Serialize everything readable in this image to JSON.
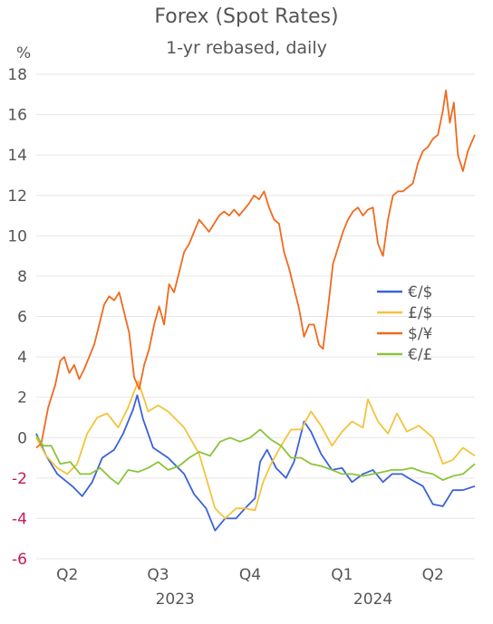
{
  "chart_data": {
    "type": "line",
    "title": "Forex (Spot Rates)",
    "subtitle": "1-yr rebased, daily",
    "ylabel": "%",
    "ylim": [
      -6,
      18
    ],
    "y_ticks": [
      18,
      16,
      14,
      12,
      10,
      8,
      6,
      4,
      2,
      0,
      -2,
      -4,
      -6
    ],
    "x_range": [
      "2023-03-15",
      "2024-05-27"
    ],
    "x_quarter_ticks": [
      {
        "label": "Q2",
        "date": "2023-04-15"
      },
      {
        "label": "Q3",
        "date": "2023-07-15"
      },
      {
        "label": "Q4",
        "date": "2023-10-15"
      },
      {
        "label": "Q1",
        "date": "2024-01-15"
      },
      {
        "label": "Q2",
        "date": "2024-04-15"
      }
    ],
    "x_year_labels": [
      {
        "label": "2023",
        "date": "2023-08-01"
      },
      {
        "label": "2024",
        "date": "2024-02-15"
      }
    ],
    "grid": "horizontal",
    "legend_position": "right",
    "colors": {
      "eur_usd": "#3a62d9",
      "gbp_usd": "#f2c43c",
      "usd_jpy": "#f06a1e",
      "eur_gbp": "#8cc43a",
      "axis_text": "#555555",
      "negative_tick": "#c2185b"
    },
    "series": [
      {
        "name": "€/$",
        "color": "#3a62d9",
        "points": [
          [
            "2023-03-15",
            0.2
          ],
          [
            "2023-03-25",
            -0.9
          ],
          [
            "2023-04-05",
            -1.8
          ],
          [
            "2023-04-20",
            -2.4
          ],
          [
            "2023-04-30",
            -2.9
          ],
          [
            "2023-05-10",
            -2.2
          ],
          [
            "2023-05-20",
            -1.0
          ],
          [
            "2023-06-01",
            -0.6
          ],
          [
            "2023-06-10",
            0.2
          ],
          [
            "2023-06-20",
            1.4
          ],
          [
            "2023-06-24",
            2.1
          ],
          [
            "2023-06-30",
            0.9
          ],
          [
            "2023-07-10",
            -0.5
          ],
          [
            "2023-07-25",
            -1.0
          ],
          [
            "2023-08-10",
            -1.8
          ],
          [
            "2023-08-20",
            -2.8
          ],
          [
            "2023-09-01",
            -3.5
          ],
          [
            "2023-09-10",
            -4.6
          ],
          [
            "2023-09-20",
            -4.0
          ],
          [
            "2023-10-01",
            -4.0
          ],
          [
            "2023-10-10",
            -3.5
          ],
          [
            "2023-10-20",
            -3.0
          ],
          [
            "2023-10-25",
            -1.2
          ],
          [
            "2023-11-01",
            -0.6
          ],
          [
            "2023-11-10",
            -1.5
          ],
          [
            "2023-11-20",
            -2.0
          ],
          [
            "2023-11-28",
            -1.2
          ],
          [
            "2023-12-05",
            0.2
          ],
          [
            "2023-12-08",
            0.8
          ],
          [
            "2023-12-15",
            0.3
          ],
          [
            "2023-12-25",
            -0.8
          ],
          [
            "2024-01-05",
            -1.6
          ],
          [
            "2024-01-15",
            -1.5
          ],
          [
            "2024-01-25",
            -2.2
          ],
          [
            "2024-02-05",
            -1.8
          ],
          [
            "2024-02-15",
            -1.6
          ],
          [
            "2024-02-25",
            -2.2
          ],
          [
            "2024-03-05",
            -1.8
          ],
          [
            "2024-03-15",
            -1.8
          ],
          [
            "2024-03-25",
            -2.1
          ],
          [
            "2024-04-05",
            -2.4
          ],
          [
            "2024-04-15",
            -3.3
          ],
          [
            "2024-04-25",
            -3.4
          ],
          [
            "2024-05-05",
            -2.6
          ],
          [
            "2024-05-15",
            -2.6
          ],
          [
            "2024-05-27",
            -2.4
          ]
        ]
      },
      {
        "name": "£/$",
        "color": "#f2c43c",
        "points": [
          [
            "2023-03-15",
            0.0
          ],
          [
            "2023-03-25",
            -0.9
          ],
          [
            "2023-04-05",
            -1.5
          ],
          [
            "2023-04-15",
            -1.8
          ],
          [
            "2023-04-25",
            -1.3
          ],
          [
            "2023-05-05",
            0.2
          ],
          [
            "2023-05-15",
            1.0
          ],
          [
            "2023-05-25",
            1.2
          ],
          [
            "2023-06-05",
            0.5
          ],
          [
            "2023-06-15",
            1.5
          ],
          [
            "2023-06-25",
            2.8
          ],
          [
            "2023-07-05",
            1.3
          ],
          [
            "2023-07-15",
            1.6
          ],
          [
            "2023-07-25",
            1.3
          ],
          [
            "2023-08-10",
            0.5
          ],
          [
            "2023-08-25",
            -0.8
          ],
          [
            "2023-09-10",
            -3.5
          ],
          [
            "2023-09-20",
            -4.0
          ],
          [
            "2023-10-01",
            -3.5
          ],
          [
            "2023-10-10",
            -3.5
          ],
          [
            "2023-10-20",
            -3.6
          ],
          [
            "2023-10-28",
            -2.2
          ],
          [
            "2023-11-05",
            -1.3
          ],
          [
            "2023-11-15",
            -0.4
          ],
          [
            "2023-11-25",
            0.4
          ],
          [
            "2023-12-05",
            0.4
          ],
          [
            "2023-12-15",
            1.3
          ],
          [
            "2023-12-25",
            0.6
          ],
          [
            "2024-01-05",
            -0.4
          ],
          [
            "2024-01-15",
            0.3
          ],
          [
            "2024-01-25",
            0.8
          ],
          [
            "2024-02-05",
            0.5
          ],
          [
            "2024-02-10",
            1.9
          ],
          [
            "2024-02-20",
            0.8
          ],
          [
            "2024-03-01",
            0.2
          ],
          [
            "2024-03-10",
            1.2
          ],
          [
            "2024-03-20",
            0.3
          ],
          [
            "2024-04-01",
            0.6
          ],
          [
            "2024-04-15",
            0.0
          ],
          [
            "2024-04-25",
            -1.3
          ],
          [
            "2024-05-05",
            -1.1
          ],
          [
            "2024-05-15",
            -0.5
          ],
          [
            "2024-05-27",
            -0.9
          ]
        ]
      },
      {
        "name": "$/¥",
        "color": "#f06a1e",
        "points": [
          [
            "2023-03-15",
            -0.5
          ],
          [
            "2023-03-20",
            -0.3
          ],
          [
            "2023-03-27",
            1.5
          ],
          [
            "2023-04-03",
            2.6
          ],
          [
            "2023-04-08",
            3.8
          ],
          [
            "2023-04-12",
            4.0
          ],
          [
            "2023-04-17",
            3.2
          ],
          [
            "2023-04-22",
            3.6
          ],
          [
            "2023-04-27",
            2.9
          ],
          [
            "2023-05-02",
            3.4
          ],
          [
            "2023-05-07",
            4.0
          ],
          [
            "2023-05-12",
            4.6
          ],
          [
            "2023-05-17",
            5.6
          ],
          [
            "2023-05-22",
            6.6
          ],
          [
            "2023-05-27",
            7.0
          ],
          [
            "2023-06-01",
            6.8
          ],
          [
            "2023-06-06",
            7.2
          ],
          [
            "2023-06-11",
            6.2
          ],
          [
            "2023-06-16",
            5.2
          ],
          [
            "2023-06-21",
            3.0
          ],
          [
            "2023-06-26",
            2.4
          ],
          [
            "2023-07-01",
            3.6
          ],
          [
            "2023-07-06",
            4.4
          ],
          [
            "2023-07-11",
            5.6
          ],
          [
            "2023-07-16",
            6.5
          ],
          [
            "2023-07-21",
            5.6
          ],
          [
            "2023-07-26",
            7.6
          ],
          [
            "2023-07-31",
            7.2
          ],
          [
            "2023-08-05",
            8.2
          ],
          [
            "2023-08-10",
            9.2
          ],
          [
            "2023-08-15",
            9.6
          ],
          [
            "2023-08-20",
            10.2
          ],
          [
            "2023-08-25",
            10.8
          ],
          [
            "2023-08-30",
            10.5
          ],
          [
            "2023-09-04",
            10.2
          ],
          [
            "2023-09-09",
            10.6
          ],
          [
            "2023-09-14",
            11.0
          ],
          [
            "2023-09-19",
            11.2
          ],
          [
            "2023-09-24",
            11.0
          ],
          [
            "2023-09-29",
            11.3
          ],
          [
            "2023-10-04",
            11.0
          ],
          [
            "2023-10-09",
            11.3
          ],
          [
            "2023-10-14",
            11.6
          ],
          [
            "2023-10-19",
            12.0
          ],
          [
            "2023-10-24",
            11.8
          ],
          [
            "2023-10-29",
            12.2
          ],
          [
            "2023-11-03",
            11.4
          ],
          [
            "2023-11-08",
            10.8
          ],
          [
            "2023-11-13",
            10.6
          ],
          [
            "2023-11-18",
            9.2
          ],
          [
            "2023-11-23",
            8.4
          ],
          [
            "2023-11-28",
            7.4
          ],
          [
            "2023-12-03",
            6.4
          ],
          [
            "2023-12-08",
            5.0
          ],
          [
            "2023-12-13",
            5.6
          ],
          [
            "2023-12-18",
            5.6
          ],
          [
            "2023-12-23",
            4.6
          ],
          [
            "2023-12-27",
            4.4
          ],
          [
            "2024-01-01",
            6.4
          ],
          [
            "2024-01-06",
            8.6
          ],
          [
            "2024-01-11",
            9.4
          ],
          [
            "2024-01-16",
            10.2
          ],
          [
            "2024-01-21",
            10.8
          ],
          [
            "2024-01-26",
            11.2
          ],
          [
            "2024-01-31",
            11.4
          ],
          [
            "2024-02-05",
            11.0
          ],
          [
            "2024-02-10",
            11.3
          ],
          [
            "2024-02-15",
            11.4
          ],
          [
            "2024-02-20",
            9.6
          ],
          [
            "2024-02-25",
            9.0
          ],
          [
            "2024-03-01",
            10.8
          ],
          [
            "2024-03-06",
            12.0
          ],
          [
            "2024-03-11",
            12.2
          ],
          [
            "2024-03-16",
            12.2
          ],
          [
            "2024-03-21",
            12.4
          ],
          [
            "2024-03-26",
            12.6
          ],
          [
            "2024-03-31",
            13.6
          ],
          [
            "2024-04-05",
            14.2
          ],
          [
            "2024-04-10",
            14.4
          ],
          [
            "2024-04-15",
            14.8
          ],
          [
            "2024-04-20",
            15.0
          ],
          [
            "2024-04-25",
            16.2
          ],
          [
            "2024-04-28",
            17.2
          ],
          [
            "2024-05-02",
            15.6
          ],
          [
            "2024-05-06",
            16.6
          ],
          [
            "2024-05-10",
            14.0
          ],
          [
            "2024-05-15",
            13.2
          ],
          [
            "2024-05-20",
            14.2
          ],
          [
            "2024-05-27",
            15.0
          ]
        ]
      },
      {
        "name": "€/£",
        "color": "#8cc43a",
        "points": [
          [
            "2023-03-15",
            0.1
          ],
          [
            "2023-03-22",
            -0.4
          ],
          [
            "2023-03-30",
            -0.4
          ],
          [
            "2023-04-08",
            -1.3
          ],
          [
            "2023-04-18",
            -1.2
          ],
          [
            "2023-04-28",
            -1.8
          ],
          [
            "2023-05-08",
            -1.8
          ],
          [
            "2023-05-18",
            -1.5
          ],
          [
            "2023-05-28",
            -2.0
          ],
          [
            "2023-06-05",
            -2.3
          ],
          [
            "2023-06-15",
            -1.6
          ],
          [
            "2023-06-25",
            -1.7
          ],
          [
            "2023-07-05",
            -1.5
          ],
          [
            "2023-07-15",
            -1.2
          ],
          [
            "2023-07-25",
            -1.6
          ],
          [
            "2023-08-05",
            -1.4
          ],
          [
            "2023-08-15",
            -1.0
          ],
          [
            "2023-08-25",
            -0.7
          ],
          [
            "2023-09-05",
            -0.9
          ],
          [
            "2023-09-15",
            -0.2
          ],
          [
            "2023-09-25",
            0.0
          ],
          [
            "2023-10-05",
            -0.2
          ],
          [
            "2023-10-15",
            0.0
          ],
          [
            "2023-10-25",
            0.4
          ],
          [
            "2023-11-05",
            -0.1
          ],
          [
            "2023-11-15",
            -0.4
          ],
          [
            "2023-11-25",
            -1.0
          ],
          [
            "2023-12-05",
            -1.0
          ],
          [
            "2023-12-15",
            -1.3
          ],
          [
            "2023-12-25",
            -1.4
          ],
          [
            "2024-01-05",
            -1.6
          ],
          [
            "2024-01-15",
            -1.8
          ],
          [
            "2024-01-25",
            -1.8
          ],
          [
            "2024-02-05",
            -1.9
          ],
          [
            "2024-02-15",
            -1.8
          ],
          [
            "2024-02-25",
            -1.7
          ],
          [
            "2024-03-05",
            -1.6
          ],
          [
            "2024-03-15",
            -1.6
          ],
          [
            "2024-03-25",
            -1.5
          ],
          [
            "2024-04-05",
            -1.7
          ],
          [
            "2024-04-15",
            -1.8
          ],
          [
            "2024-04-25",
            -2.1
          ],
          [
            "2024-05-05",
            -1.9
          ],
          [
            "2024-05-15",
            -1.8
          ],
          [
            "2024-05-27",
            -1.3
          ]
        ]
      }
    ]
  }
}
